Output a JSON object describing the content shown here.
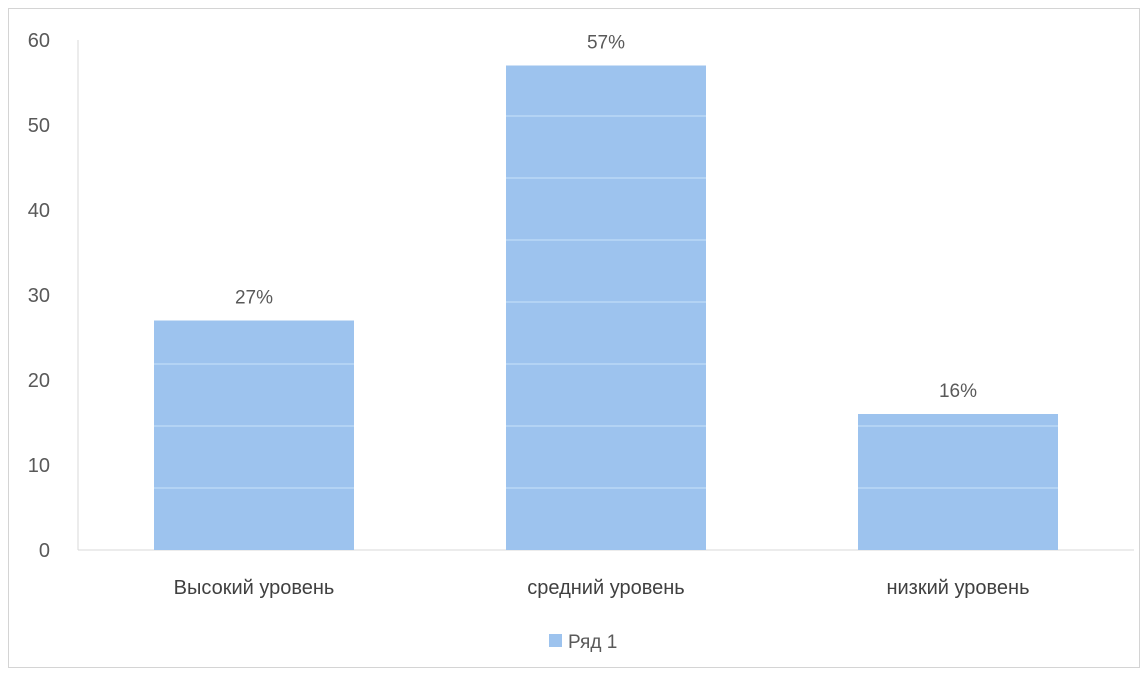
{
  "chart_data": {
    "type": "bar",
    "categories": [
      "Высокий уровень",
      "средний уровень",
      "низкий уровень"
    ],
    "series": [
      {
        "name": "Ряд 1",
        "values": [
          27,
          57,
          16
        ],
        "data_labels": [
          "27%",
          "57%",
          "16%"
        ],
        "color": "#9dc3ee"
      }
    ],
    "ylim": [
      0,
      60
    ],
    "yticks": [
      0,
      10,
      20,
      30,
      40,
      50,
      60
    ],
    "grid": false,
    "legend": "bottom",
    "title": "",
    "xlabel": "",
    "ylabel": ""
  }
}
